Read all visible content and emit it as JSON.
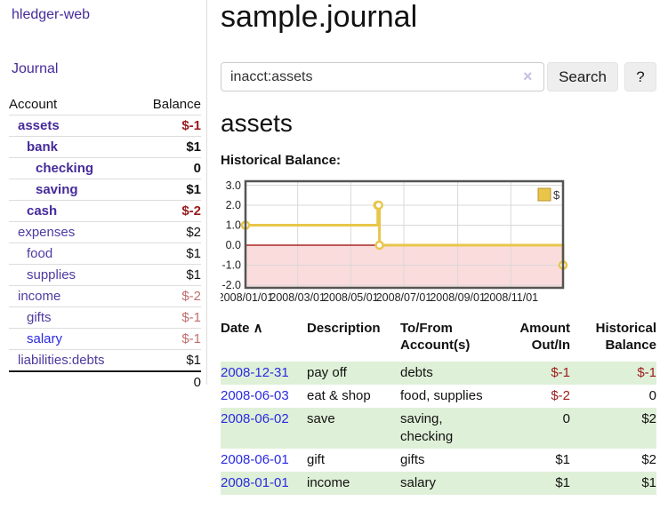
{
  "app": {
    "brand": "hledger-web",
    "nav": {
      "journal": "Journal"
    }
  },
  "header": {
    "title": "sample.journal",
    "search": {
      "value": "inacct:assets",
      "clear_icon": "×",
      "search_button": "Search",
      "help_button": "?"
    }
  },
  "sidebar": {
    "columns": {
      "account": "Account",
      "balance": "Balance"
    },
    "accounts": [
      {
        "name": "assets",
        "indent": 1,
        "name_style": "boldPurple",
        "balance": "$-1",
        "balance_style": "negStrong"
      },
      {
        "name": "bank",
        "indent": 2,
        "name_style": "boldPurple",
        "balance": "$1",
        "balance_style": "boldDark"
      },
      {
        "name": "checking",
        "indent": 3,
        "name_style": "boldPurple",
        "balance": "0",
        "balance_style": "boldDark"
      },
      {
        "name": "saving",
        "indent": 3,
        "name_style": "boldPurple",
        "balance": "$1",
        "balance_style": "boldDark"
      },
      {
        "name": "cash",
        "indent": 2,
        "name_style": "boldPurple",
        "balance": "$-2",
        "balance_style": "negStrong"
      },
      {
        "name": "expenses",
        "indent": 1,
        "name_style": "purple",
        "balance": "$2",
        "balance_style": "plain"
      },
      {
        "name": "food",
        "indent": 2,
        "name_style": "purple",
        "balance": "$1",
        "balance_style": "plain"
      },
      {
        "name": "supplies",
        "indent": 2,
        "name_style": "purple",
        "balance": "$1",
        "balance_style": "plain"
      },
      {
        "name": "income",
        "indent": 1,
        "name_style": "purple",
        "balance": "$-2",
        "balance_style": "negMuted"
      },
      {
        "name": "gifts",
        "indent": 2,
        "name_style": "purple",
        "balance": "$-1",
        "balance_style": "negMuted"
      },
      {
        "name": "salary",
        "indent": 2,
        "name_style": "blue",
        "balance": "$-1",
        "balance_style": "negMuted"
      },
      {
        "name": "liabilities:debts",
        "indent": 1,
        "name_style": "purple",
        "balance": "$1",
        "balance_style": "plain"
      }
    ],
    "total": "0"
  },
  "account_page": {
    "heading": "assets",
    "chart_title": "Historical Balance:"
  },
  "chart_data": {
    "type": "line",
    "step": true,
    "title": "Historical Balance",
    "series": [
      {
        "name": "$",
        "color": "#e9c64a",
        "points": [
          [
            "2008-01-01",
            1
          ],
          [
            "2008-06-01",
            2
          ],
          [
            "2008-06-02",
            2
          ],
          [
            "2008-06-03",
            0
          ],
          [
            "2008-12-31",
            -1
          ]
        ]
      }
    ],
    "xlim": [
      "2008-01-01",
      "2008-12-31"
    ],
    "ylim": [
      -2,
      3
    ],
    "x_ticks": [
      {
        "date": "2008-01-01",
        "label": "2008/01/01"
      },
      {
        "date": "2008-03-01",
        "label": "2008/03/01"
      },
      {
        "date": "2008-05-01",
        "label": "2008/05/01"
      },
      {
        "date": "2008-07-01",
        "label": "2008/07/01"
      },
      {
        "date": "2008-09-01",
        "label": "2008/09/01"
      },
      {
        "date": "2008-11-01",
        "label": "2008/11/01"
      }
    ],
    "y_ticks": [
      "3.0",
      "2.0",
      "1.0",
      "0.0",
      "-1.0",
      "-2.0"
    ],
    "grid": true,
    "legend": {
      "label": "$",
      "position": "top-right"
    },
    "negative_region_fill": "#fbdcdc",
    "zero_line_color": "#990000",
    "marker_fill": "#ffffff"
  },
  "register": {
    "columns": [
      {
        "label": "Date",
        "sort_icon": "∧",
        "align": "left"
      },
      {
        "label": "Description",
        "align": "left"
      },
      {
        "label": "To/From Account(s)",
        "align": "left"
      },
      {
        "label": "Amount Out/In",
        "align": "right"
      },
      {
        "label": "Historical Balance",
        "align": "right"
      }
    ],
    "rows": [
      {
        "date": "2008-12-31",
        "description": "pay off",
        "accounts": "debts",
        "amount": "$-1",
        "amount_neg": true,
        "balance": "$-1",
        "balance_neg": true,
        "stripe": true
      },
      {
        "date": "2008-06-03",
        "description": "eat & shop",
        "accounts": "food, supplies",
        "amount": "$-2",
        "amount_neg": true,
        "balance": "0",
        "balance_neg": false,
        "stripe": false
      },
      {
        "date": "2008-06-02",
        "description": "save",
        "accounts": "saving, checking",
        "amount": "0",
        "amount_neg": false,
        "balance": "$2",
        "balance_neg": false,
        "stripe": true
      },
      {
        "date": "2008-06-01",
        "description": "gift",
        "accounts": "gifts",
        "amount": "$1",
        "amount_neg": false,
        "balance": "$2",
        "balance_neg": false,
        "stripe": false
      },
      {
        "date": "2008-01-01",
        "description": "income",
        "accounts": "salary",
        "amount": "$1",
        "amount_neg": false,
        "balance": "$1",
        "balance_neg": false,
        "stripe": true
      }
    ]
  },
  "colors": {
    "link_purple": "#452b9a",
    "link_blue": "#2a2ae0",
    "negative_strong": "#9b1b1b",
    "negative_muted": "#c06e6e",
    "row_stripe_green": "#dff0d8",
    "chart_line_gold": "#e9c64a",
    "chart_negative_fill": "#fbdcdc",
    "chart_zero_line": "#990000"
  }
}
